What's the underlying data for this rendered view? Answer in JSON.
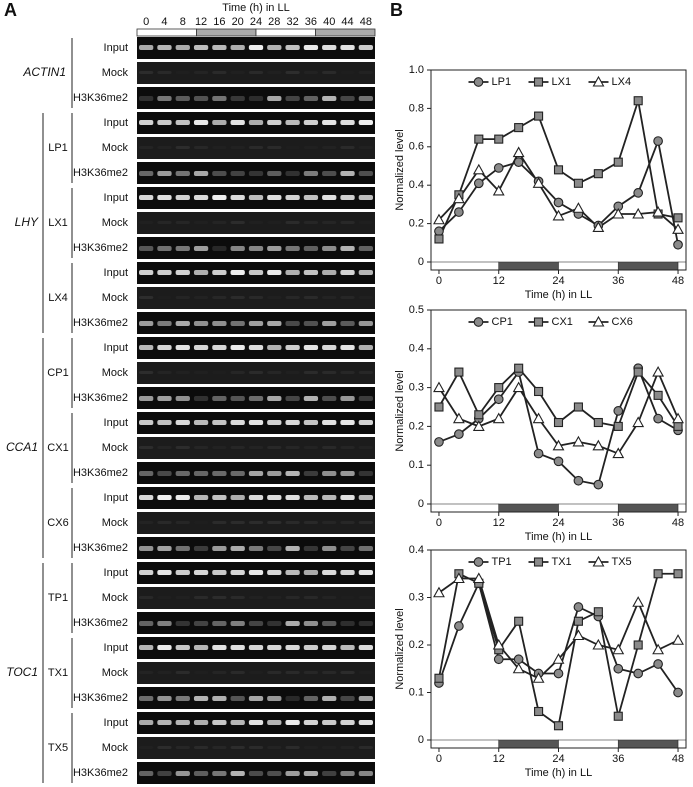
{
  "panel_labels": [
    "A",
    "B"
  ],
  "gel": {
    "time_title": "Time (h) in LL",
    "times": [
      0,
      4,
      8,
      12,
      16,
      20,
      24,
      28,
      32,
      36,
      40,
      44,
      48
    ],
    "groups": [
      {
        "gene": "ACTIN1",
        "regions": [
          {
            "rows": [
              "Input",
              "Mock",
              "H3K36me2"
            ]
          }
        ]
      },
      {
        "gene": "LHY",
        "regions": [
          {
            "name": "LP1",
            "rows": [
              "Input",
              "Mock",
              "H3K36me2"
            ]
          },
          {
            "name": "LX1",
            "rows": [
              "Input",
              "Mock",
              "H3K36me2"
            ]
          },
          {
            "name": "LX4",
            "rows": [
              "Input",
              "Mock",
              "H3K36me2"
            ]
          }
        ]
      },
      {
        "gene": "CCA1",
        "regions": [
          {
            "name": "CP1",
            "rows": [
              "Input",
              "Mock",
              "H3K36me2"
            ]
          },
          {
            "name": "CX1",
            "rows": [
              "Input",
              "Mock",
              "H3K36me2"
            ]
          },
          {
            "name": "CX6",
            "rows": [
              "Input",
              "Mock",
              "H3K36me2"
            ]
          }
        ]
      },
      {
        "gene": "TOC1",
        "regions": [
          {
            "name": "TP1",
            "rows": [
              "Input",
              "Mock",
              "H3K36me2"
            ]
          },
          {
            "name": "TX1",
            "rows": [
              "Input",
              "Mock",
              "H3K36me2"
            ]
          },
          {
            "name": "TX5",
            "rows": [
              "Input",
              "Mock",
              "H3K36me2"
            ]
          }
        ]
      }
    ]
  },
  "chart_data": [
    {
      "type": "line",
      "xlabel": "Time (h) in LL",
      "ylabel": "Normalized level",
      "x": [
        0,
        4,
        8,
        12,
        16,
        20,
        24,
        28,
        32,
        36,
        40,
        44,
        48
      ],
      "xlim": [
        -1.6,
        49.6
      ],
      "xticks": [
        0,
        12,
        24,
        36,
        48
      ],
      "ylim": [
        0,
        1
      ],
      "yticks": [
        0,
        0.2,
        0.4,
        0.6,
        0.8,
        {
          "value": 1,
          "label": "1.0"
        }
      ],
      "series": [
        {
          "name": "LP1",
          "marker": "circle",
          "color": "#8a8a8a",
          "values": [
            0.16,
            0.26,
            0.41,
            0.49,
            0.52,
            0.42,
            0.31,
            0.25,
            0.19,
            0.29,
            0.36,
            0.63,
            0.09
          ]
        },
        {
          "name": "LX1",
          "marker": "square",
          "color": "#8a8a8a",
          "values": [
            0.12,
            0.35,
            0.64,
            0.64,
            0.7,
            0.76,
            0.48,
            0.41,
            0.46,
            0.52,
            0.84,
            0.25,
            0.23
          ]
        },
        {
          "name": "LX4",
          "marker": "triangle",
          "color": "#ffffff",
          "values": [
            0.22,
            0.33,
            0.48,
            0.37,
            0.57,
            0.41,
            0.24,
            0.28,
            0.18,
            0.25,
            0.25,
            0.26,
            0.17
          ]
        }
      ]
    },
    {
      "type": "line",
      "xlabel": "Time (h) in LL",
      "ylabel": "Normalized level",
      "x": [
        0,
        4,
        8,
        12,
        16,
        20,
        24,
        28,
        32,
        36,
        40,
        44,
        48
      ],
      "xlim": [
        -1.6,
        49.6
      ],
      "xticks": [
        0,
        12,
        24,
        36,
        48
      ],
      "ylim": [
        0,
        0.5
      ],
      "yticks": [
        0,
        0.1,
        0.2,
        0.3,
        0.4,
        0.5
      ],
      "series": [
        {
          "name": "CP1",
          "marker": "circle",
          "color": "#8a8a8a",
          "values": [
            0.16,
            0.18,
            0.22,
            0.27,
            0.34,
            0.13,
            0.11,
            0.06,
            0.05,
            0.24,
            0.35,
            0.22,
            0.19
          ]
        },
        {
          "name": "CX1",
          "marker": "square",
          "color": "#8a8a8a",
          "values": [
            0.25,
            0.34,
            0.23,
            0.3,
            0.35,
            0.29,
            0.21,
            0.25,
            0.21,
            0.2,
            0.34,
            0.28,
            0.2
          ]
        },
        {
          "name": "CX6",
          "marker": "triangle",
          "color": "#ffffff",
          "values": [
            0.3,
            0.22,
            0.2,
            0.22,
            0.3,
            0.22,
            0.15,
            0.16,
            0.15,
            0.13,
            0.21,
            0.34,
            0.22
          ]
        }
      ]
    },
    {
      "type": "line",
      "xlabel": "Time (h) in LL",
      "ylabel": "Normalized level",
      "x": [
        0,
        4,
        8,
        12,
        16,
        20,
        24,
        28,
        32,
        36,
        40,
        44,
        48
      ],
      "xlim": [
        -1.6,
        49.6
      ],
      "xticks": [
        0,
        12,
        24,
        36,
        48
      ],
      "ylim": [
        0,
        0.4
      ],
      "yticks": [
        0,
        0.1,
        0.2,
        0.3,
        0.4
      ],
      "series": [
        {
          "name": "TP1",
          "marker": "circle",
          "color": "#8a8a8a",
          "values": [
            0.12,
            0.24,
            0.33,
            0.17,
            0.17,
            0.14,
            0.14,
            0.28,
            0.26,
            0.15,
            0.14,
            0.16,
            0.1
          ]
        },
        {
          "name": "TX1",
          "marker": "square",
          "color": "#8a8a8a",
          "values": [
            0.13,
            0.35,
            0.33,
            0.19,
            0.25,
            0.06,
            0.03,
            0.25,
            0.27,
            0.05,
            0.2,
            0.35,
            0.35
          ]
        },
        {
          "name": "TX5",
          "marker": "triangle",
          "color": "#ffffff",
          "values": [
            0.31,
            0.34,
            0.34,
            0.2,
            0.15,
            0.13,
            0.17,
            0.22,
            0.2,
            0.19,
            0.29,
            0.19,
            0.21
          ]
        }
      ]
    }
  ]
}
